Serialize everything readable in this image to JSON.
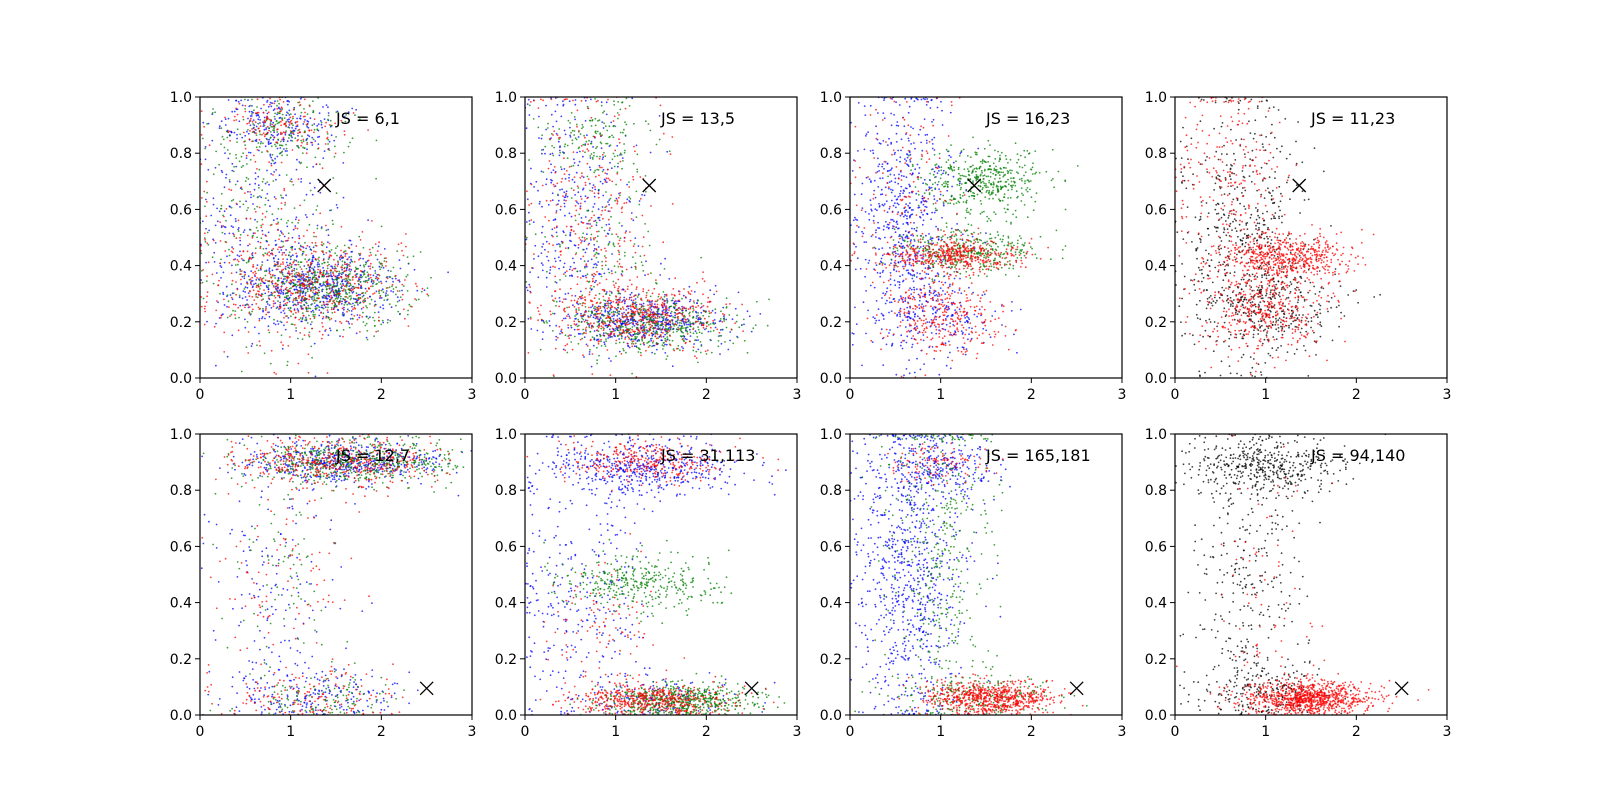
{
  "figure": {
    "background": "#ffffff",
    "series_colors": {
      "blue": "#0000ff",
      "green": "#008000",
      "red": "#ff0000",
      "black": "#000000"
    }
  },
  "chart_data": [
    {
      "type": "scatter",
      "panel": 1,
      "annotation": "JS = 6,1",
      "xlim": [
        0,
        3
      ],
      "ylim": [
        0,
        1
      ],
      "xticks": [
        "0",
        "1",
        "2",
        "3"
      ],
      "yticks": [
        "0.0",
        "0.2",
        "0.4",
        "0.6",
        "0.8",
        "1.0"
      ],
      "marker": {
        "x": 1.37,
        "y": 0.685
      },
      "series": [
        {
          "color": "blue",
          "clusters": [
            {
              "x": 1.3,
              "y": 0.33,
              "sx": 0.45,
              "sy": 0.07,
              "n": 600
            },
            {
              "x": 0.9,
              "y": 0.9,
              "sx": 0.35,
              "sy": 0.05,
              "n": 200
            },
            {
              "x": 0.7,
              "y": 0.55,
              "sx": 0.4,
              "sy": 0.2,
              "n": 250
            }
          ]
        },
        {
          "color": "green",
          "clusters": [
            {
              "x": 1.4,
              "y": 0.32,
              "sx": 0.45,
              "sy": 0.07,
              "n": 550
            },
            {
              "x": 0.9,
              "y": 0.88,
              "sx": 0.35,
              "sy": 0.06,
              "n": 180
            },
            {
              "x": 0.8,
              "y": 0.5,
              "sx": 0.4,
              "sy": 0.2,
              "n": 200
            }
          ]
        },
        {
          "color": "red",
          "clusters": [
            {
              "x": 1.3,
              "y": 0.34,
              "sx": 0.5,
              "sy": 0.08,
              "n": 450
            },
            {
              "x": 0.9,
              "y": 0.9,
              "sx": 0.35,
              "sy": 0.05,
              "n": 150
            },
            {
              "x": 0.7,
              "y": 0.45,
              "sx": 0.4,
              "sy": 0.2,
              "n": 200
            }
          ]
        }
      ]
    },
    {
      "type": "scatter",
      "panel": 2,
      "annotation": "JS = 13,5",
      "xlim": [
        0,
        3
      ],
      "ylim": [
        0,
        1
      ],
      "xticks": [
        "0",
        "1",
        "2",
        "3"
      ],
      "yticks": [
        "0.0",
        "0.2",
        "0.4",
        "0.6",
        "0.8",
        "1.0"
      ],
      "marker": {
        "x": 1.37,
        "y": 0.685
      },
      "series": [
        {
          "color": "blue",
          "clusters": [
            {
              "x": 1.3,
              "y": 0.2,
              "sx": 0.45,
              "sy": 0.05,
              "n": 550
            },
            {
              "x": 0.6,
              "y": 0.6,
              "sx": 0.35,
              "sy": 0.22,
              "n": 350
            }
          ]
        },
        {
          "color": "green",
          "clusters": [
            {
              "x": 1.4,
              "y": 0.19,
              "sx": 0.45,
              "sy": 0.05,
              "n": 500
            },
            {
              "x": 0.8,
              "y": 0.85,
              "sx": 0.3,
              "sy": 0.08,
              "n": 150
            },
            {
              "x": 0.8,
              "y": 0.45,
              "sx": 0.35,
              "sy": 0.15,
              "n": 150
            }
          ]
        },
        {
          "color": "red",
          "clusters": [
            {
              "x": 1.25,
              "y": 0.22,
              "sx": 0.45,
              "sy": 0.06,
              "n": 500
            },
            {
              "x": 0.7,
              "y": 0.55,
              "sx": 0.35,
              "sy": 0.25,
              "n": 300
            }
          ]
        }
      ]
    },
    {
      "type": "scatter",
      "panel": 3,
      "annotation": "JS = 16,23",
      "xlim": [
        0,
        3
      ],
      "ylim": [
        0,
        1
      ],
      "xticks": [
        "0",
        "1",
        "2",
        "3"
      ],
      "yticks": [
        "0.0",
        "0.2",
        "0.4",
        "0.6",
        "0.8",
        "1.0"
      ],
      "marker": {
        "x": 1.37,
        "y": 0.685
      },
      "series": [
        {
          "color": "blue",
          "clusters": [
            {
              "x": 0.6,
              "y": 0.55,
              "sx": 0.3,
              "sy": 0.25,
              "n": 650
            },
            {
              "x": 1.0,
              "y": 0.22,
              "sx": 0.35,
              "sy": 0.07,
              "n": 200
            }
          ]
        },
        {
          "color": "green",
          "clusters": [
            {
              "x": 1.5,
              "y": 0.7,
              "sx": 0.35,
              "sy": 0.06,
              "n": 450
            },
            {
              "x": 1.3,
              "y": 0.45,
              "sx": 0.4,
              "sy": 0.04,
              "n": 350
            }
          ]
        },
        {
          "color": "red",
          "clusters": [
            {
              "x": 1.15,
              "y": 0.44,
              "sx": 0.4,
              "sy": 0.03,
              "n": 450
            },
            {
              "x": 1.0,
              "y": 0.22,
              "sx": 0.3,
              "sy": 0.07,
              "n": 300
            },
            {
              "x": 0.6,
              "y": 0.6,
              "sx": 0.3,
              "sy": 0.25,
              "n": 150
            }
          ]
        }
      ]
    },
    {
      "type": "scatter",
      "panel": 4,
      "annotation": "JS = 11,23",
      "xlim": [
        0,
        3
      ],
      "ylim": [
        0,
        1
      ],
      "xticks": [
        "0",
        "1",
        "2",
        "3"
      ],
      "yticks": [
        "0.0",
        "0.2",
        "0.4",
        "0.6",
        "0.8",
        "1.0"
      ],
      "marker": {
        "x": 1.37,
        "y": 0.685
      },
      "series": [
        {
          "color": "black",
          "clusters": [
            {
              "x": 0.75,
              "y": 0.5,
              "sx": 0.35,
              "sy": 0.25,
              "n": 550
            },
            {
              "x": 1.1,
              "y": 0.25,
              "sx": 0.35,
              "sy": 0.08,
              "n": 300
            }
          ]
        },
        {
          "color": "red",
          "clusters": [
            {
              "x": 1.25,
              "y": 0.43,
              "sx": 0.35,
              "sy": 0.04,
              "n": 550
            },
            {
              "x": 1.0,
              "y": 0.24,
              "sx": 0.35,
              "sy": 0.08,
              "n": 400
            },
            {
              "x": 0.6,
              "y": 0.7,
              "sx": 0.3,
              "sy": 0.2,
              "n": 250
            }
          ]
        }
      ]
    },
    {
      "type": "scatter",
      "panel": 5,
      "annotation": "JS = 12,7",
      "xlim": [
        0,
        3
      ],
      "ylim": [
        0,
        1
      ],
      "xticks": [
        "0",
        "1",
        "2",
        "3"
      ],
      "yticks": [
        "0.0",
        "0.2",
        "0.4",
        "0.6",
        "0.8",
        "1.0"
      ],
      "marker": {
        "x": 2.5,
        "y": 0.095
      },
      "series": [
        {
          "color": "blue",
          "clusters": [
            {
              "x": 1.6,
              "y": 0.9,
              "sx": 0.55,
              "sy": 0.04,
              "n": 500
            },
            {
              "x": 1.3,
              "y": 0.07,
              "sx": 0.5,
              "sy": 0.05,
              "n": 200
            },
            {
              "x": 0.8,
              "y": 0.45,
              "sx": 0.35,
              "sy": 0.25,
              "n": 150
            }
          ]
        },
        {
          "color": "green",
          "clusters": [
            {
              "x": 1.7,
              "y": 0.9,
              "sx": 0.55,
              "sy": 0.04,
              "n": 550
            },
            {
              "x": 1.3,
              "y": 0.06,
              "sx": 0.45,
              "sy": 0.05,
              "n": 120
            },
            {
              "x": 0.9,
              "y": 0.55,
              "sx": 0.3,
              "sy": 0.2,
              "n": 80
            }
          ]
        },
        {
          "color": "red",
          "clusters": [
            {
              "x": 1.5,
              "y": 0.9,
              "sx": 0.55,
              "sy": 0.04,
              "n": 450
            },
            {
              "x": 1.2,
              "y": 0.07,
              "sx": 0.5,
              "sy": 0.05,
              "n": 150
            },
            {
              "x": 0.9,
              "y": 0.5,
              "sx": 0.35,
              "sy": 0.2,
              "n": 100
            }
          ]
        }
      ]
    },
    {
      "type": "scatter",
      "panel": 6,
      "annotation": "JS = 31,113",
      "xlim": [
        0,
        3
      ],
      "ylim": [
        0,
        1
      ],
      "xticks": [
        "0",
        "1",
        "2",
        "3"
      ],
      "yticks": [
        "0.0",
        "0.2",
        "0.4",
        "0.6",
        "0.8",
        "1.0"
      ],
      "marker": {
        "x": 2.5,
        "y": 0.095
      },
      "series": [
        {
          "color": "blue",
          "clusters": [
            {
              "x": 1.3,
              "y": 0.88,
              "sx": 0.5,
              "sy": 0.05,
              "n": 500
            },
            {
              "x": 0.6,
              "y": 0.45,
              "sx": 0.35,
              "sy": 0.25,
              "n": 300
            },
            {
              "x": 1.4,
              "y": 0.06,
              "sx": 0.45,
              "sy": 0.04,
              "n": 150
            }
          ]
        },
        {
          "color": "green",
          "clusters": [
            {
              "x": 1.7,
              "y": 0.05,
              "sx": 0.45,
              "sy": 0.03,
              "n": 550
            },
            {
              "x": 1.3,
              "y": 0.47,
              "sx": 0.45,
              "sy": 0.05,
              "n": 350
            }
          ]
        },
        {
          "color": "red",
          "clusters": [
            {
              "x": 1.4,
              "y": 0.05,
              "sx": 0.45,
              "sy": 0.03,
              "n": 500
            },
            {
              "x": 1.3,
              "y": 0.9,
              "sx": 0.45,
              "sy": 0.04,
              "n": 300
            },
            {
              "x": 0.8,
              "y": 0.3,
              "sx": 0.35,
              "sy": 0.15,
              "n": 100
            }
          ]
        }
      ]
    },
    {
      "type": "scatter",
      "panel": 7,
      "annotation": "JS = 165,181",
      "xlim": [
        0,
        3
      ],
      "ylim": [
        0,
        1
      ],
      "xticks": [
        "0",
        "1",
        "2",
        "3"
      ],
      "yticks": [
        "0.0",
        "0.2",
        "0.4",
        "0.6",
        "0.8",
        "1.0"
      ],
      "marker": {
        "x": 2.5,
        "y": 0.095
      },
      "series": [
        {
          "color": "blue",
          "clusters": [
            {
              "x": 0.65,
              "y": 0.5,
              "sx": 0.3,
              "sy": 0.28,
              "n": 800
            },
            {
              "x": 1.0,
              "y": 0.88,
              "sx": 0.35,
              "sy": 0.05,
              "n": 250
            }
          ]
        },
        {
          "color": "green",
          "clusters": [
            {
              "x": 1.0,
              "y": 0.6,
              "sx": 0.3,
              "sy": 0.3,
              "n": 400
            },
            {
              "x": 1.4,
              "y": 0.07,
              "sx": 0.45,
              "sy": 0.04,
              "n": 200
            }
          ]
        },
        {
          "color": "red",
          "clusters": [
            {
              "x": 1.55,
              "y": 0.06,
              "sx": 0.35,
              "sy": 0.03,
              "n": 700
            },
            {
              "x": 1.0,
              "y": 0.9,
              "sx": 0.3,
              "sy": 0.04,
              "n": 100
            }
          ]
        }
      ]
    },
    {
      "type": "scatter",
      "panel": 8,
      "annotation": "JS = 94,140",
      "xlim": [
        0,
        3
      ],
      "ylim": [
        0,
        1
      ],
      "xticks": [
        "0",
        "1",
        "2",
        "3"
      ],
      "yticks": [
        "0.0",
        "0.2",
        "0.4",
        "0.6",
        "0.8",
        "1.0"
      ],
      "marker": {
        "x": 2.5,
        "y": 0.095
      },
      "series": [
        {
          "color": "black",
          "clusters": [
            {
              "x": 1.0,
              "y": 0.88,
              "sx": 0.45,
              "sy": 0.05,
              "n": 450
            },
            {
              "x": 0.8,
              "y": 0.5,
              "sx": 0.3,
              "sy": 0.25,
              "n": 300
            },
            {
              "x": 1.0,
              "y": 0.08,
              "sx": 0.4,
              "sy": 0.05,
              "n": 200
            }
          ]
        },
        {
          "color": "red",
          "clusters": [
            {
              "x": 1.45,
              "y": 0.06,
              "sx": 0.35,
              "sy": 0.03,
              "n": 900
            },
            {
              "x": 1.0,
              "y": 0.45,
              "sx": 0.3,
              "sy": 0.25,
              "n": 80
            }
          ]
        }
      ]
    }
  ]
}
